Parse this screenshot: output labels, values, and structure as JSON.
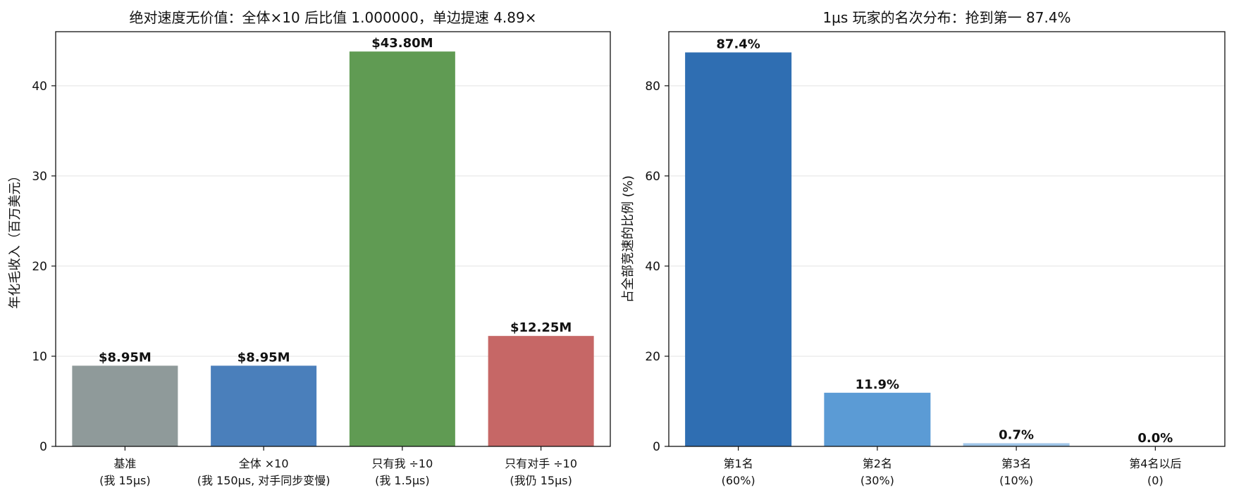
{
  "chart_data": [
    {
      "type": "bar",
      "title": "绝对速度无价值：全体×10 后比值 1.000000，单边提速 4.89×",
      "xlabel": "",
      "ylabel": "年化毛收入（百万美元）",
      "ylim": [
        0,
        46
      ],
      "yticks": [
        0,
        10,
        20,
        30,
        40
      ],
      "grid": true,
      "categories": [
        [
          "基准",
          "(我 15μs)"
        ],
        [
          "全体 ×10",
          "(我 150μs, 对手同步变慢)"
        ],
        [
          "只有我 ÷10",
          "(我 1.5μs)"
        ],
        [
          "只有对手 ÷10",
          "(我仍 15μs)"
        ]
      ],
      "values": [
        8.95,
        8.95,
        43.8,
        12.25
      ],
      "labels": [
        "$8.95M",
        "$8.95M",
        "$43.80M",
        "$12.25M"
      ],
      "colors": [
        "#8f9a9a",
        "#4a7fbb",
        "#609b53",
        "#c66766"
      ]
    },
    {
      "type": "bar",
      "title": "1μs 玩家的名次分布：抢到第一 87.4%",
      "xlabel": "",
      "ylabel": "占全部竞速的比例 (%)",
      "ylim": [
        0,
        92
      ],
      "yticks": [
        0,
        20,
        40,
        60,
        80
      ],
      "grid": true,
      "categories": [
        [
          "第1名",
          "(60%)"
        ],
        [
          "第2名",
          "(30%)"
        ],
        [
          "第3名",
          "(10%)"
        ],
        [
          "第4名以后",
          "(0)"
        ]
      ],
      "values": [
        87.4,
        11.9,
        0.7,
        0.0
      ],
      "labels": [
        "87.4%",
        "11.9%",
        "0.7%",
        "0.0%"
      ],
      "colors": [
        "#2f6eb2",
        "#5b9bd5",
        "#9fc5e8",
        "#c6dbef"
      ]
    }
  ]
}
